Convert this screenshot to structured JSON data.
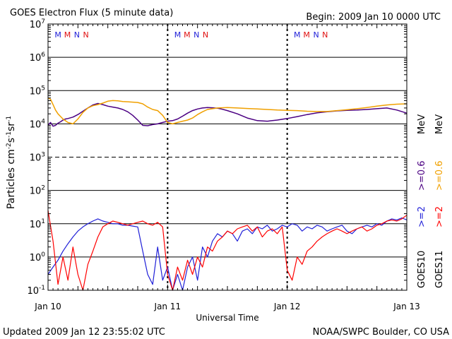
{
  "chart_data": {
    "type": "line",
    "title": "GOES Electron Flux (5 minute data)",
    "begin_label": "Begin: 2009 Jan 10 0000 UTC",
    "xlabel": "Universal Time",
    "ylabel": "Particles cm-2s-1sr-1",
    "ylim": [
      0.1,
      10000000
    ],
    "y_scale": "log",
    "y_ticks": [
      {
        "base": "10",
        "exp": "-1"
      },
      {
        "base": "10",
        "exp": "0"
      },
      {
        "base": "10",
        "exp": "1"
      },
      {
        "base": "10",
        "exp": "2"
      },
      {
        "base": "10",
        "exp": "3"
      },
      {
        "base": "10",
        "exp": "4"
      },
      {
        "base": "10",
        "exp": "5"
      },
      {
        "base": "10",
        "exp": "6"
      },
      {
        "base": "10",
        "exp": "7"
      }
    ],
    "x_ticks": [
      "Jan 10",
      "Jan 11",
      "Jan 12",
      "Jan 13"
    ],
    "xlim_hours": [
      0,
      72
    ],
    "mn_markers": [
      {
        "label": "M",
        "hour": 2.0,
        "color": "#1f1fd8"
      },
      {
        "label": "M",
        "hour": 3.9,
        "color": "#e01010"
      },
      {
        "label": "N",
        "hour": 5.8,
        "color": "#1f1fd8"
      },
      {
        "label": "N",
        "hour": 7.6,
        "color": "#e01010"
      },
      {
        "label": "M",
        "hour": 26.0,
        "color": "#1f1fd8"
      },
      {
        "label": "M",
        "hour": 27.9,
        "color": "#e01010"
      },
      {
        "label": "N",
        "hour": 29.8,
        "color": "#1f1fd8"
      },
      {
        "label": "N",
        "hour": 31.6,
        "color": "#e01010"
      },
      {
        "label": "M",
        "hour": 50.0,
        "color": "#1f1fd8"
      },
      {
        "label": "M",
        "hour": 51.9,
        "color": "#e01010"
      },
      {
        "label": "N",
        "hour": 53.8,
        "color": "#1f1fd8"
      },
      {
        "label": "N",
        "hour": 55.6,
        "color": "#e01010"
      }
    ],
    "legend": {
      "position": "right",
      "goes10_label": "GOES10",
      "goes11_label": "GOES11",
      "g10_ge2": ">=2",
      "g10_ge06": ">=0.6",
      "g11_ge2": ">=2",
      "g11_ge06": ">=0.6",
      "unit": "MeV"
    },
    "series": [
      {
        "name": "GOES10 >=0.6 MeV",
        "color": "#4b0082",
        "x": [
          0,
          0.5,
          1,
          1.5,
          2,
          2.5,
          3,
          3.5,
          4,
          5,
          6,
          7,
          8,
          9,
          10,
          11,
          12,
          13,
          14,
          15,
          16,
          17,
          18,
          19,
          20,
          21,
          22,
          23,
          24,
          25,
          26,
          27,
          28,
          29,
          30,
          31,
          32,
          33,
          34,
          35,
          36,
          38,
          40,
          42,
          44,
          46,
          48,
          50,
          52,
          54,
          56,
          58,
          60,
          62,
          64,
          66,
          68,
          70,
          72
        ],
        "values": [
          9000,
          11000,
          8500,
          9000,
          10500,
          11500,
          13000,
          14000,
          14500,
          16000,
          19000,
          24000,
          30000,
          37000,
          41000,
          38000,
          34000,
          32000,
          30000,
          27000,
          23000,
          18000,
          13000,
          9000,
          8800,
          9500,
          10000,
          11000,
          12000,
          12500,
          14000,
          17000,
          21000,
          25000,
          28000,
          30000,
          31000,
          30500,
          29500,
          27500,
          25000,
          20000,
          15000,
          12500,
          12000,
          13000,
          14500,
          16500,
          19000,
          21500,
          23000,
          24500,
          25500,
          26000,
          27000,
          28500,
          30000,
          26000,
          21000
        ]
      },
      {
        "name": "GOES11 >=0.6 MeV",
        "color": "#f0a000",
        "x": [
          0,
          0.5,
          1,
          1.5,
          2,
          3,
          4,
          5,
          6,
          7,
          8,
          9,
          10,
          11,
          12,
          13,
          14,
          15,
          16,
          17,
          18,
          19,
          20,
          21,
          22,
          23,
          24,
          25,
          26,
          27,
          28,
          29,
          30,
          31,
          32,
          34,
          36,
          38,
          40,
          42,
          44,
          46,
          48,
          50,
          52,
          54,
          56,
          58,
          60,
          62,
          64,
          66,
          68,
          70,
          72
        ],
        "values": [
          60000,
          55000,
          38000,
          26000,
          20000,
          14000,
          11000,
          10000,
          14000,
          22000,
          30000,
          35000,
          38000,
          42000,
          48000,
          50000,
          49000,
          47000,
          46000,
          45000,
          44000,
          40000,
          32000,
          27000,
          25000,
          18000,
          11000,
          10000,
          11000,
          12000,
          13000,
          15000,
          19000,
          23000,
          27000,
          30000,
          31000,
          30000,
          29000,
          28000,
          27000,
          26000,
          25500,
          25000,
          24000,
          23500,
          23500,
          25000,
          26500,
          28500,
          31000,
          34000,
          37000,
          39000,
          40000
        ]
      },
      {
        "name": "GOES10 >=2 MeV",
        "color": "#1f1fd8",
        "x": [
          0,
          1,
          2,
          3,
          4,
          5,
          6,
          7,
          8,
          9,
          10,
          11,
          12,
          13,
          14,
          15,
          16,
          17,
          18,
          19,
          20,
          21,
          22,
          23,
          24,
          25,
          26,
          27,
          28,
          29,
          30,
          31,
          32,
          33,
          34,
          35,
          36,
          37,
          38,
          39,
          40,
          41,
          42,
          43,
          44,
          45,
          46,
          47,
          48,
          49,
          50,
          51,
          52,
          53,
          54,
          55,
          56,
          57,
          58,
          59,
          60,
          61,
          62,
          63,
          64,
          65,
          66,
          67,
          68,
          69,
          70,
          71,
          72
        ],
        "values": [
          0.3,
          0.5,
          0.8,
          1.5,
          2.5,
          4,
          6,
          8,
          10,
          12,
          14,
          12,
          11,
          10,
          10,
          9,
          9,
          8.5,
          8,
          1.5,
          0.3,
          0.15,
          2,
          0.2,
          0.5,
          0.1,
          0.3,
          0.1,
          0.5,
          1,
          0.2,
          2,
          1,
          3,
          5,
          4,
          6,
          5,
          3,
          6,
          7,
          5,
          8,
          7,
          9,
          6,
          7,
          9,
          8,
          10,
          9,
          6,
          8,
          7,
          9,
          8,
          6,
          7,
          8,
          9,
          6,
          5,
          7,
          8,
          9,
          8,
          10,
          9,
          12,
          14,
          13,
          15,
          13
        ]
      },
      {
        "name": "GOES11 >=2 MeV",
        "color": "#ff0000",
        "x": [
          0,
          1,
          2,
          3,
          4,
          5,
          6,
          7,
          8,
          9,
          10,
          11,
          12,
          13,
          14,
          15,
          16,
          17,
          18,
          19,
          20,
          21,
          22,
          23,
          24,
          25,
          26,
          27,
          28,
          29,
          30,
          31,
          32,
          33,
          34,
          35,
          36,
          37,
          38,
          39,
          40,
          41,
          42,
          43,
          44,
          45,
          46,
          47,
          48,
          49,
          50,
          51,
          52,
          53,
          54,
          55,
          56,
          57,
          58,
          59,
          60,
          61,
          62,
          63,
          64,
          65,
          66,
          67,
          68,
          69,
          70,
          71,
          72
        ],
        "values": [
          25,
          3,
          0.15,
          1,
          0.2,
          2,
          0.3,
          0.1,
          0.6,
          1.5,
          4,
          8,
          10,
          12,
          11,
          10,
          9,
          10,
          11,
          12,
          10,
          9,
          11,
          8,
          0.3,
          0.1,
          0.5,
          0.2,
          0.8,
          0.3,
          1,
          0.5,
          2,
          1.5,
          3,
          4,
          6,
          5,
          7,
          8,
          9,
          6,
          8,
          4,
          6,
          7,
          5,
          8,
          0.4,
          0.2,
          1,
          0.6,
          1.5,
          2,
          3,
          4,
          5,
          6,
          7,
          6,
          5,
          6,
          7,
          8,
          6,
          7,
          9,
          10,
          12,
          13,
          12,
          14,
          18
        ]
      }
    ]
  },
  "footer": {
    "updated": "Updated 2009 Jan 12 23:55:02 UTC",
    "credit": "NOAA/SWPC Boulder, CO USA"
  }
}
